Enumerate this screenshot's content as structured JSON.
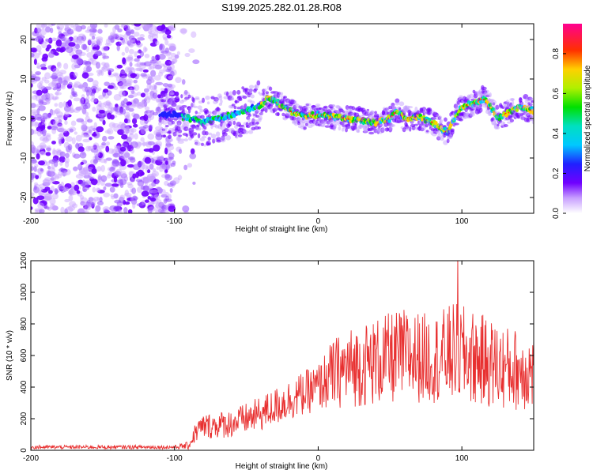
{
  "title": "S199.2025.282.01.28.R08",
  "chart_data": [
    {
      "type": "heatmap",
      "xlabel": "Height of straight line (km)",
      "ylabel": "Frequency (Hz)",
      "xlim": [
        -200,
        150
      ],
      "ylim": [
        -24,
        24
      ],
      "xticks": [
        -200,
        -100,
        0,
        100
      ],
      "yticks": [
        -20,
        -10,
        0,
        10,
        20
      ],
      "xtick_labels": [
        "-200",
        "-100",
        "0",
        "100"
      ],
      "ytick_labels": [
        "-20",
        "-10",
        "0",
        "10",
        "20"
      ],
      "colorbar": {
        "label": "Normalized spectral amplitude",
        "range": [
          0,
          0.95
        ],
        "ticks": [
          0,
          0.2,
          0.4,
          0.6,
          0.8
        ],
        "tick_labels": [
          "0.0",
          "0.2",
          "0.4",
          "0.6",
          "0.8"
        ],
        "colormap": "rainbow (white-violet-blue-cyan-green-yellow-red-magenta)"
      },
      "ridge": {
        "x": [
          -100,
          -90,
          -80,
          -70,
          -60,
          -50,
          -40,
          -35,
          -30,
          -20,
          -10,
          0,
          10,
          20,
          30,
          40,
          50,
          55,
          60,
          70,
          80,
          85,
          90,
          95,
          100,
          110,
          115,
          120,
          125,
          130,
          140,
          150
        ],
        "y": [
          1,
          0,
          -1,
          0,
          1,
          2,
          3.5,
          5,
          4.5,
          2,
          0.5,
          1,
          0.5,
          0,
          -0.5,
          -1,
          0,
          2,
          0,
          0.5,
          -1,
          -2.5,
          -3.5,
          0,
          3,
          4,
          5,
          3,
          0,
          1,
          3,
          2
        ]
      },
      "noise_region_x": [
        -200,
        -100
      ]
    },
    {
      "type": "line",
      "xlabel": "Height of straight line (km)",
      "ylabel": "SNR (10 * v/v)",
      "xlim": [
        -200,
        150
      ],
      "ylim": [
        0,
        1200
      ],
      "xticks": [
        -200,
        -100,
        0,
        100
      ],
      "yticks": [
        0,
        200,
        400,
        600,
        800,
        1000,
        1200
      ],
      "xtick_labels": [
        "-200",
        "-100",
        "0",
        "100"
      ],
      "ytick_labels": [
        "0",
        "200",
        "400",
        "600",
        "800",
        "1000",
        "1200"
      ],
      "color": "#e83030",
      "envelope": {
        "x": [
          -200,
          -100,
          -90,
          -85,
          -80,
          -60,
          -40,
          -20,
          -10,
          0,
          10,
          20,
          40,
          60,
          80,
          95,
          110,
          130,
          150
        ],
        "mean": [
          20,
          20,
          30,
          120,
          150,
          170,
          230,
          320,
          360,
          400,
          480,
          520,
          560,
          600,
          580,
          620,
          580,
          520,
          500
        ],
        "amplitude": [
          12,
          12,
          25,
          70,
          80,
          90,
          110,
          130,
          140,
          150,
          220,
          250,
          280,
          300,
          280,
          320,
          300,
          270,
          250
        ]
      },
      "peak": {
        "x": 97,
        "y": 1230
      }
    }
  ]
}
